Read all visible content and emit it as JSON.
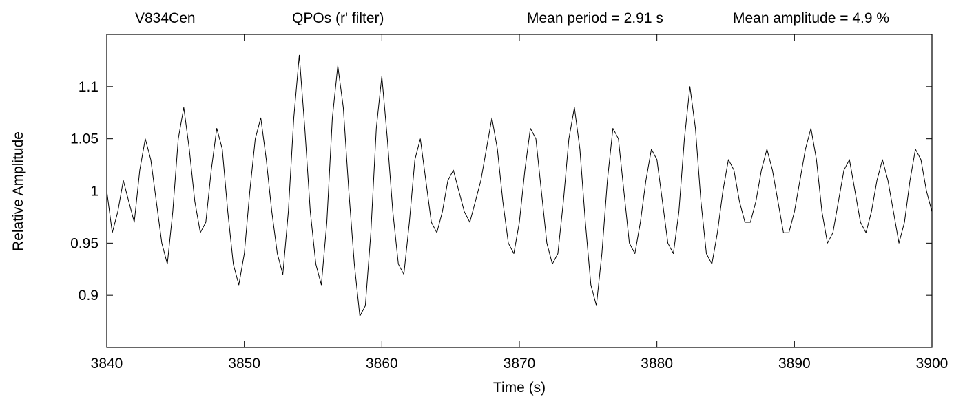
{
  "header": {
    "object_name": "V834Cen",
    "subtitle": "QPOs (r' filter)",
    "mean_period": "Mean period = 2.91 s",
    "mean_amplitude": "Mean amplitude = 4.9 %"
  },
  "chart_data": {
    "type": "line",
    "title": "",
    "xlabel": "Time (s)",
    "ylabel": "Relative Amplitude",
    "xlim": [
      3840,
      3900
    ],
    "ylim": [
      0.85,
      1.15
    ],
    "x_ticks": [
      3840,
      3850,
      3860,
      3870,
      3880,
      3890,
      3900
    ],
    "x_tick_labels": [
      "3840",
      "3850",
      "3860",
      "3870",
      "3880",
      "3890",
      "3900"
    ],
    "y_ticks": [
      0.9,
      0.95,
      1.0,
      1.05,
      1.1
    ],
    "y_tick_labels": [
      "0.9",
      "0.95",
      "1",
      "1.05",
      "1.1"
    ],
    "grid": false,
    "line_color": "#000000",
    "series": [
      {
        "x": [
          3840.0,
          3840.4,
          3840.8,
          3841.2,
          3841.6,
          3842.0,
          3842.4,
          3842.8,
          3843.2,
          3843.6,
          3844.0,
          3844.4,
          3844.8,
          3845.2,
          3845.6,
          3846.0,
          3846.4,
          3846.8,
          3847.2,
          3847.6,
          3848.0,
          3848.4,
          3848.8,
          3849.2,
          3849.6,
          3850.0,
          3850.4,
          3850.8,
          3851.2,
          3851.6,
          3852.0,
          3852.4,
          3852.8,
          3853.2,
          3853.6,
          3854.0,
          3854.4,
          3854.8,
          3855.2,
          3855.6,
          3856.0,
          3856.4,
          3856.8,
          3857.2,
          3857.6,
          3858.0,
          3858.4,
          3858.8,
          3859.2,
          3859.6,
          3860.0,
          3860.4,
          3860.8,
          3861.2,
          3861.6,
          3862.0,
          3862.4,
          3862.8,
          3863.2,
          3863.6,
          3864.0,
          3864.4,
          3864.8,
          3865.2,
          3865.6,
          3866.0,
          3866.4,
          3866.8,
          3867.2,
          3867.6,
          3868.0,
          3868.4,
          3868.8,
          3869.2,
          3869.6,
          3870.0,
          3870.4,
          3870.8,
          3871.2,
          3871.6,
          3872.0,
          3872.4,
          3872.8,
          3873.2,
          3873.6,
          3874.0,
          3874.4,
          3874.8,
          3875.2,
          3875.6,
          3876.0,
          3876.4,
          3876.8,
          3877.2,
          3877.6,
          3878.0,
          3878.4,
          3878.8,
          3879.2,
          3879.6,
          3880.0,
          3880.4,
          3880.8,
          3881.2,
          3881.6,
          3882.0,
          3882.4,
          3882.8,
          3883.2,
          3883.6,
          3884.0,
          3884.4,
          3884.8,
          3885.2,
          3885.6,
          3886.0,
          3886.4,
          3886.8,
          3887.2,
          3887.6,
          3888.0,
          3888.4,
          3888.8,
          3889.2,
          3889.6,
          3890.0,
          3890.4,
          3890.8,
          3891.2,
          3891.6,
          3892.0,
          3892.4,
          3892.8,
          3893.2,
          3893.6,
          3894.0,
          3894.4,
          3894.8,
          3895.2,
          3895.6,
          3896.0,
          3896.4,
          3896.8,
          3897.2,
          3897.6,
          3898.0,
          3898.4,
          3898.8,
          3899.2,
          3899.6,
          3900.0
        ],
        "values": [
          1.0,
          0.96,
          0.98,
          1.01,
          0.99,
          0.97,
          1.02,
          1.05,
          1.03,
          0.99,
          0.95,
          0.93,
          0.98,
          1.05,
          1.08,
          1.04,
          0.99,
          0.96,
          0.97,
          1.02,
          1.06,
          1.04,
          0.98,
          0.93,
          0.91,
          0.94,
          1.0,
          1.05,
          1.07,
          1.03,
          0.98,
          0.94,
          0.92,
          0.98,
          1.07,
          1.13,
          1.06,
          0.98,
          0.93,
          0.91,
          0.97,
          1.07,
          1.12,
          1.08,
          1.0,
          0.93,
          0.88,
          0.89,
          0.96,
          1.06,
          1.11,
          1.05,
          0.98,
          0.93,
          0.92,
          0.97,
          1.03,
          1.05,
          1.01,
          0.97,
          0.96,
          0.98,
          1.01,
          1.02,
          1.0,
          0.98,
          0.97,
          0.99,
          1.01,
          1.04,
          1.07,
          1.04,
          0.99,
          0.95,
          0.94,
          0.97,
          1.02,
          1.06,
          1.05,
          1.0,
          0.95,
          0.93,
          0.94,
          0.99,
          1.05,
          1.08,
          1.04,
          0.97,
          0.91,
          0.89,
          0.94,
          1.01,
          1.06,
          1.05,
          1.0,
          0.95,
          0.94,
          0.97,
          1.01,
          1.04,
          1.03,
          0.99,
          0.95,
          0.94,
          0.98,
          1.05,
          1.1,
          1.06,
          0.99,
          0.94,
          0.93,
          0.96,
          1.0,
          1.03,
          1.02,
          0.99,
          0.97,
          0.97,
          0.99,
          1.02,
          1.04,
          1.02,
          0.99,
          0.96,
          0.96,
          0.98,
          1.01,
          1.04,
          1.06,
          1.03,
          0.98,
          0.95,
          0.96,
          0.99,
          1.02,
          1.03,
          1.0,
          0.97,
          0.96,
          0.98,
          1.01,
          1.03,
          1.01,
          0.98,
          0.95,
          0.97,
          1.01,
          1.04,
          1.03,
          1.0,
          0.98
        ]
      }
    ]
  }
}
